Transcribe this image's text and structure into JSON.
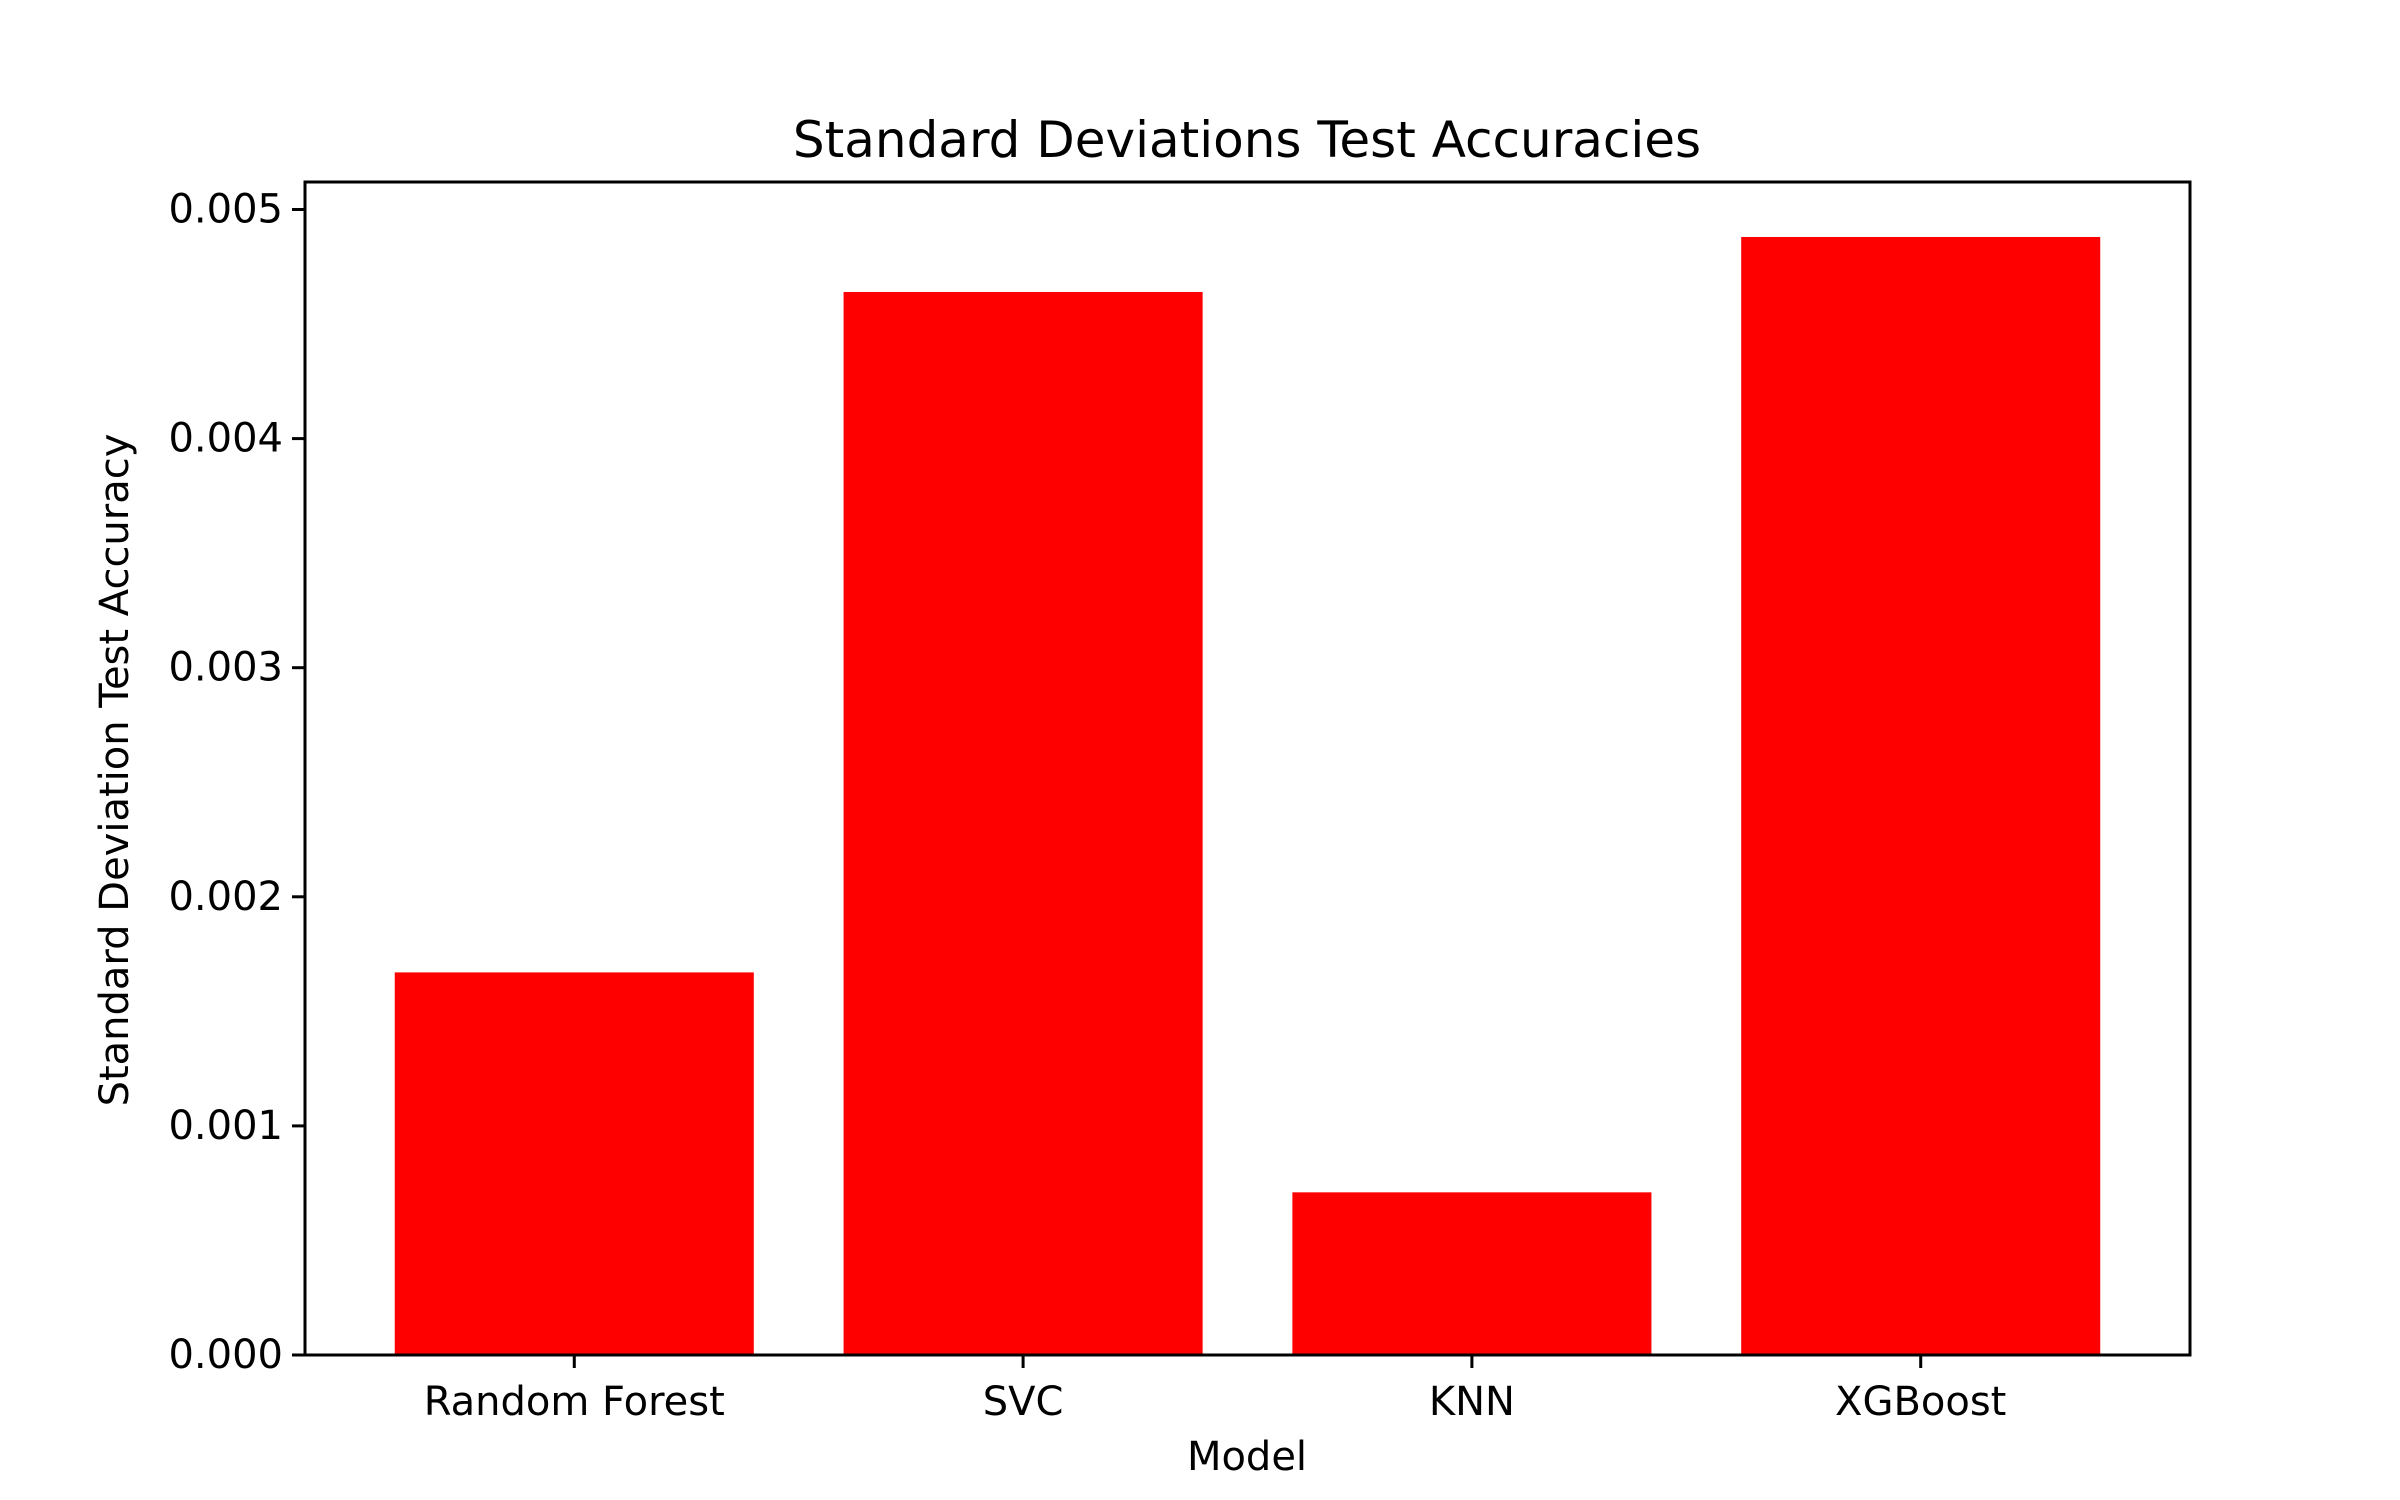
{
  "chart_data": {
    "type": "bar",
    "title": "Standard Deviations Test Accuracies",
    "xlabel": "Model",
    "ylabel": "Standard Deviation Test Accuracy",
    "categories": [
      "Random Forest",
      "SVC",
      "KNN",
      "XGBoost"
    ],
    "values": [
      0.00167,
      0.00464,
      0.00071,
      0.00488
    ],
    "ylim": [
      0,
      0.00512
    ],
    "yticks": [
      0.0,
      0.001,
      0.002,
      0.003,
      0.004,
      0.005
    ],
    "ytick_labels": [
      "0.000",
      "0.001",
      "0.002",
      "0.003",
      "0.004",
      "0.005"
    ],
    "grid": false,
    "legend": false,
    "bar_color": "#ff0000",
    "axis_color": "#000000"
  }
}
